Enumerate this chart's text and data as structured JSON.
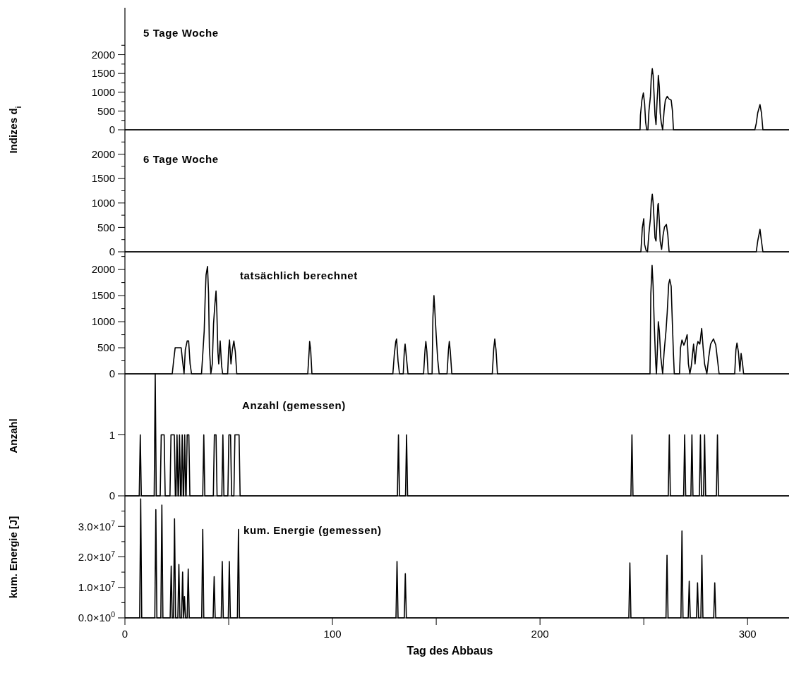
{
  "chart_data": [
    {
      "type": "line",
      "title": "5 Tage Woche",
      "ylabel": "Indizes d$_{i}$",
      "xlim": [
        0,
        320
      ],
      "ylim": [
        0,
        3250
      ],
      "yticks": [
        0,
        {
          "value": 250,
          "label": null
        },
        500,
        {
          "value": 750,
          "label": null
        },
        1000,
        {
          "value": 1250,
          "label": null
        },
        1500,
        {
          "value": 1750,
          "label": null
        },
        2000,
        {
          "value": 2250,
          "label": null
        }
      ],
      "tick_labels": "y",
      "series": [
        {
          "color": "#000000",
          "x": [
            0,
            248.2,
            248.4,
            249.1,
            249.8,
            250.4,
            250.9,
            251.4,
            252.0,
            252.5,
            253.2,
            253.6,
            254.1,
            254.5,
            255.0,
            255.4,
            255.9,
            256.4,
            256.8,
            257.0,
            257.5,
            257.9,
            258.4,
            259.1,
            259.8,
            260.4,
            261.3,
            262.2,
            263.2,
            263.8,
            264.3,
            303.5,
            304.2,
            304.9,
            306.0,
            306.7,
            307.4,
            320
          ],
          "values": [
            0,
            0,
            390,
            790,
            980,
            700,
            200,
            0,
            0,
            510,
            890,
            1380,
            1630,
            1450,
            890,
            390,
            140,
            760,
            1140,
            1450,
            1140,
            450,
            200,
            0,
            510,
            790,
            890,
            820,
            790,
            510,
            0,
            0,
            170,
            450,
            670,
            450,
            0,
            0
          ]
        }
      ]
    },
    {
      "type": "line",
      "title": "6 Tage Woche",
      "xlim": [
        0,
        320
      ],
      "ylim": [
        0,
        2500
      ],
      "yticks": [
        0,
        {
          "value": 250,
          "label": null
        },
        500,
        {
          "value": 750,
          "label": null
        },
        1000,
        {
          "value": 1250,
          "label": null
        },
        1500,
        {
          "value": 1750,
          "label": null
        },
        2000,
        {
          "value": 2250,
          "label": null
        }
      ],
      "tick_labels": "y",
      "series": [
        {
          "color": "#000000",
          "x": [
            0,
            248.6,
            249.3,
            250.0,
            250.4,
            251.1,
            251.8,
            252.5,
            253.2,
            253.6,
            254.1,
            254.5,
            255.0,
            255.4,
            255.9,
            256.4,
            256.8,
            257.0,
            257.5,
            257.9,
            258.6,
            259.3,
            260.0,
            260.9,
            261.6,
            262.2,
            304.2,
            304.9,
            306.0,
            306.7,
            307.4,
            320
          ],
          "values": [
            0,
            0,
            490,
            680,
            150,
            30,
            0,
            390,
            680,
            1010,
            1180,
            1010,
            630,
            290,
            220,
            630,
            960,
            990,
            630,
            220,
            50,
            340,
            510,
            560,
            340,
            0,
            0,
            220,
            460,
            220,
            0,
            0
          ]
        }
      ]
    },
    {
      "type": "line",
      "title": "tatsächlich berechnet",
      "xlim": [
        0,
        320
      ],
      "ylim": [
        0,
        2340
      ],
      "yticks": [
        0,
        {
          "value": 250,
          "label": null
        },
        500,
        {
          "value": 750,
          "label": null
        },
        1000,
        {
          "value": 1250,
          "label": null
        },
        1500,
        {
          "value": 1750,
          "label": null
        },
        2000,
        {
          "value": 2250,
          "label": null
        }
      ],
      "tick_labels": "y",
      "series": [
        {
          "color": "#000000",
          "x": [
            0,
            22.8,
            23.5,
            24.2,
            27.1,
            27.8,
            28.5,
            29.1,
            30.0,
            30.7,
            31.4,
            32.1,
            36.9,
            37.5,
            38.2,
            38.7,
            39.1,
            39.8,
            40.3,
            40.7,
            41.4,
            42.1,
            42.7,
            43.4,
            43.9,
            44.3,
            44.8,
            45.2,
            45.9,
            46.6,
            47.1,
            49.5,
            50.0,
            50.4,
            51.1,
            51.8,
            52.5,
            53.2,
            53.9,
            88.1,
            88.8,
            89.0,
            89.5,
            90.1,
            129.1,
            129.8,
            130.5,
            130.9,
            131.6,
            132.3,
            134.1,
            134.6,
            135.0,
            135.5,
            136.4,
            143.9,
            144.6,
            145.0,
            145.5,
            146.1,
            148.0,
            148.4,
            148.9,
            149.3,
            150.0,
            150.7,
            151.4,
            155.2,
            155.9,
            156.3,
            156.8,
            157.5,
            177.0,
            177.7,
            178.2,
            178.8,
            179.5,
            253.0,
            253.4,
            254.0,
            254.5,
            255.0,
            255.7,
            256.1,
            256.6,
            257.0,
            257.5,
            258.2,
            259.1,
            259.8,
            260.7,
            261.3,
            262.0,
            262.5,
            263.2,
            263.6,
            264.3,
            264.7,
            267.2,
            267.7,
            268.4,
            269.3,
            270.0,
            270.9,
            271.5,
            272.2,
            272.9,
            273.6,
            274.0,
            274.7,
            275.4,
            276.1,
            277.0,
            277.9,
            278.6,
            279.3,
            280.4,
            281.3,
            282.2,
            283.6,
            284.7,
            285.6,
            286.3,
            293.8,
            294.4,
            294.9,
            295.6,
            296.3,
            296.9,
            297.6,
            298.1,
            320
          ],
          "values": [
            0,
            0,
            260,
            500,
            500,
            240,
            0,
            460,
            630,
            630,
            190,
            0,
            0,
            370,
            820,
            1500,
            1900,
            2060,
            1540,
            500,
            0,
            190,
            960,
            1360,
            1590,
            1180,
            420,
            190,
            630,
            150,
            0,
            0,
            480,
            650,
            190,
            470,
            630,
            420,
            0,
            0,
            460,
            620,
            460,
            0,
            0,
            370,
            620,
            670,
            240,
            0,
            0,
            420,
            570,
            370,
            0,
            0,
            460,
            620,
            420,
            0,
            0,
            1090,
            1500,
            1230,
            730,
            280,
            0,
            0,
            460,
            620,
            420,
            0,
            0,
            480,
            670,
            460,
            0,
            0,
            1540,
            2080,
            1680,
            1000,
            240,
            0,
            500,
            1000,
            820,
            320,
            0,
            420,
            820,
            1180,
            1720,
            1810,
            1680,
            1180,
            370,
            0,
            0,
            500,
            650,
            550,
            620,
            750,
            190,
            0,
            150,
            420,
            570,
            190,
            500,
            620,
            570,
            870,
            500,
            190,
            0,
            320,
            570,
            670,
            550,
            240,
            0,
            0,
            460,
            590,
            420,
            50,
            390,
            190,
            0,
            0
          ]
        }
      ]
    },
    {
      "type": "line",
      "title": "Anzahl (gemessen)",
      "ylabel": "Anzahl",
      "xlim": [
        0,
        320
      ],
      "ylim": [
        0,
        2
      ],
      "yticks": [
        0,
        1
      ],
      "tick_labels": "y",
      "series": [
        {
          "color": "#000000",
          "x": [
            0,
            6.9,
            7.4,
            7.9,
            14.1,
            14.6,
            15.1,
            17.0,
            17.5,
            18.9,
            19.4,
            21.7,
            22.2,
            23.8,
            24.3,
            24.6,
            25.1,
            25.6,
            25.8,
            26.3,
            26.8,
            27.1,
            27.6,
            28.1,
            28.3,
            28.8,
            29.3,
            29.5,
            30.0,
            30.8,
            31.3,
            37.5,
            38.0,
            38.5,
            42.6,
            43.1,
            43.9,
            44.4,
            46.7,
            47.2,
            47.7,
            49.6,
            50.1,
            50.9,
            51.4,
            52.5,
            53.0,
            55.0,
            55.5,
            131.3,
            131.8,
            132.3,
            135.2,
            135.7,
            136.2,
            243.8,
            244.3,
            244.8,
            261.8,
            262.3,
            262.8,
            269.2,
            269.7,
            270.2,
            272.7,
            273.2,
            273.7,
            276.8,
            277.3,
            277.8,
            278.8,
            279.3,
            279.8,
            285.0,
            285.5,
            286.0,
            320
          ],
          "values": [
            0,
            0,
            1,
            0,
            0,
            2,
            0,
            0,
            1,
            1,
            0,
            0,
            1,
            1,
            0,
            0,
            1,
            0,
            0,
            1,
            0,
            0,
            1,
            0,
            0,
            1,
            0,
            0,
            1,
            1,
            0,
            0,
            1,
            0,
            0,
            1,
            1,
            0,
            0,
            1,
            0,
            0,
            1,
            1,
            0,
            0,
            1,
            1,
            0,
            0,
            1,
            0,
            0,
            1,
            0,
            0,
            1,
            0,
            0,
            1,
            0,
            0,
            1,
            0,
            0,
            1,
            0,
            0,
            1,
            0,
            0,
            1,
            0,
            0,
            1,
            0,
            0
          ]
        }
      ]
    },
    {
      "type": "line",
      "title": "kum. Energie (gemessen)",
      "ylabel": "kum. Energie [J]",
      "xlabel": "Tag des Abbaus",
      "xlim": [
        0,
        320
      ],
      "ylim": [
        0,
        40000000
      ],
      "xticks": [
        0,
        {
          "value": 50,
          "label": null
        },
        100,
        {
          "value": 150,
          "label": null
        },
        200,
        {
          "value": 250,
          "label": null
        },
        300
      ],
      "yticks": [
        {
          "value": 0,
          "label": "0.0×10$^{0}$"
        },
        {
          "value": 5000000,
          "label": null
        },
        {
          "value": 10000000,
          "label": "1.0×10$^{7}$"
        },
        {
          "value": 15000000,
          "label": null
        },
        {
          "value": 20000000,
          "label": "2.0×10$^{7}$"
        },
        {
          "value": 25000000,
          "label": null
        },
        {
          "value": 30000000,
          "label": "3.0×10$^{7}$"
        },
        {
          "value": 35000000,
          "label": null
        }
      ],
      "series": [
        {
          "color": "#000000",
          "x": [
            0,
            7.1,
            7.6,
            8.1,
            14.4,
            14.9,
            15.4,
            17.3,
            17.8,
            18.3,
            21.8,
            22.3,
            22.8,
            23.4,
            23.9,
            24.4,
            25.5,
            26.0,
            26.5,
            27.3,
            27.8,
            28.25,
            28.3,
            28.7,
            29.2,
            30.0,
            30.5,
            31.0,
            37.0,
            37.5,
            38.0,
            42.5,
            43.0,
            43.5,
            46.4,
            46.9,
            47.4,
            49.8,
            50.3,
            50.8,
            54.2,
            54.7,
            55.2,
            130.6,
            131.1,
            131.6,
            134.6,
            135.1,
            135.6,
            242.8,
            243.3,
            243.8,
            260.7,
            261.2,
            261.7,
            267.9,
            268.4,
            268.9,
            271.4,
            271.9,
            272.4,
            275.4,
            275.9,
            276.4,
            277.5,
            278.0,
            278.5,
            283.7,
            284.2,
            284.7,
            320
          ],
          "values": [
            0,
            0,
            39000000,
            0,
            0,
            35500000,
            0,
            0,
            37000000,
            0,
            0,
            17000000,
            0,
            0,
            32500000,
            0,
            0,
            17500000,
            0,
            0,
            15000000,
            0,
            0,
            7000000,
            0,
            0,
            16000000,
            0,
            0,
            29000000,
            0,
            0,
            13500000,
            0,
            0,
            18500000,
            0,
            0,
            18500000,
            0,
            0,
            29000000,
            0,
            0,
            18500000,
            0,
            0,
            14500000,
            0,
            0,
            18000000,
            0,
            0,
            20500000,
            0,
            0,
            28500000,
            0,
            0,
            12000000,
            0,
            0,
            11500000,
            0,
            0,
            20500000,
            0,
            0,
            11500000,
            0,
            0
          ]
        }
      ]
    }
  ]
}
